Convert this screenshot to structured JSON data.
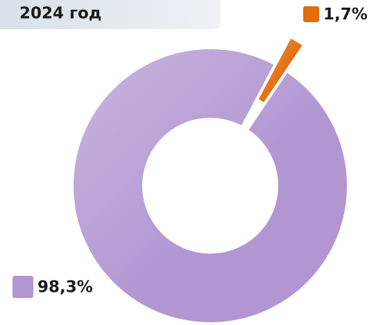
{
  "chart_data": {
    "type": "donut",
    "title": "2024 год",
    "values": [
      98.3,
      1.7
    ],
    "value_labels": [
      "98,3%",
      "1,7%"
    ],
    "colors": [
      "#b196d2",
      "#e46c0a"
    ],
    "explode": [
      false,
      true
    ]
  }
}
